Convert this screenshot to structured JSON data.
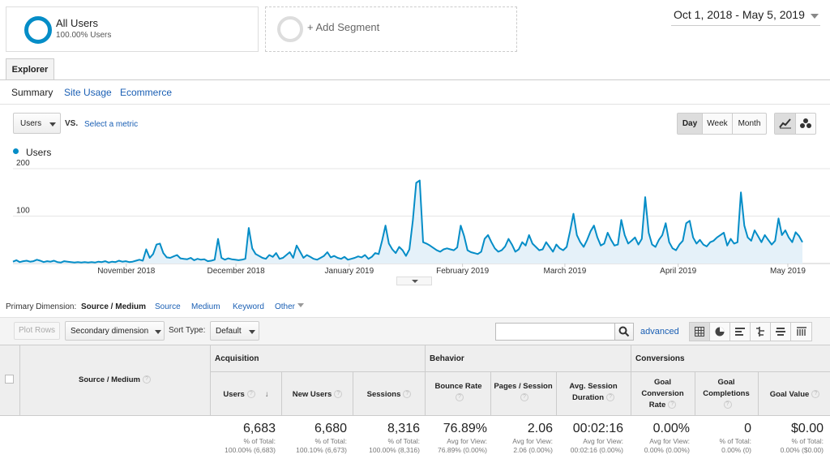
{
  "segment": {
    "title": "All Users",
    "subtitle": "100.00% Users",
    "add_label": "+ Add Segment"
  },
  "date_range": "Oct 1, 2018 - May 5, 2019",
  "tabs": {
    "explorer": "Explorer"
  },
  "subtabs": [
    "Summary",
    "Site Usage",
    "Ecommerce"
  ],
  "metric": {
    "selected": "Users",
    "vs": "VS.",
    "select_metric": "Select a metric"
  },
  "granularity": [
    "Day",
    "Week",
    "Month"
  ],
  "granularity_active": "Day",
  "legend": {
    "label": "Users",
    "color": "#058dc7"
  },
  "chart_data": {
    "type": "area",
    "series": [
      {
        "name": "Users",
        "color": "#058dc7"
      }
    ],
    "y_ticks": [
      "200",
      "100"
    ],
    "ylim": [
      0,
      200
    ],
    "x_labels": [
      "November 2018",
      "December 2018",
      "January 2019",
      "February 2019",
      "March 2019",
      "April 2019",
      "May 2019"
    ],
    "x_range": [
      "2018-10-01",
      "2019-05-05"
    ],
    "values": [
      4,
      7,
      3,
      5,
      6,
      4,
      5,
      8,
      6,
      3,
      5,
      4,
      6,
      3,
      2,
      5,
      4,
      3,
      2,
      3,
      2,
      3,
      2,
      3,
      2,
      4,
      3,
      5,
      2,
      4,
      3,
      6,
      4,
      5,
      3,
      4,
      6,
      8,
      6,
      30,
      12,
      20,
      40,
      42,
      22,
      13,
      12,
      15,
      18,
      11,
      10,
      9,
      12,
      7,
      10,
      8,
      9,
      5,
      6,
      8,
      52,
      12,
      8,
      11,
      9,
      8,
      7,
      8,
      10,
      75,
      32,
      20,
      16,
      12,
      10,
      18,
      14,
      22,
      10,
      12,
      18,
      24,
      12,
      38,
      25,
      12,
      18,
      14,
      10,
      8,
      12,
      16,
      24,
      13,
      16,
      12,
      10,
      14,
      8,
      10,
      12,
      15,
      13,
      18,
      10,
      14,
      22,
      20,
      48,
      80,
      42,
      30,
      22,
      35,
      28,
      16,
      30,
      90,
      170,
      175,
      45,
      42,
      38,
      33,
      28,
      25,
      30,
      32,
      30,
      28,
      34,
      80,
      58,
      28,
      24,
      22,
      20,
      25,
      52,
      60,
      45,
      32,
      25,
      28,
      36,
      52,
      40,
      25,
      30,
      45,
      38,
      60,
      42,
      35,
      28,
      30,
      45,
      35,
      25,
      40,
      32,
      28,
      35,
      68,
      105,
      60,
      45,
      35,
      50,
      68,
      80,
      55,
      38,
      42,
      65,
      50,
      38,
      40,
      92,
      60,
      42,
      48,
      55,
      40,
      52,
      140,
      65,
      40,
      35,
      50,
      60,
      85,
      45,
      32,
      28,
      40,
      48,
      85,
      90,
      55,
      42,
      50,
      40,
      36,
      45,
      48,
      55,
      60,
      65,
      38,
      52,
      42,
      45,
      150,
      80,
      55,
      48,
      70,
      58,
      45,
      60,
      50,
      40,
      48,
      95,
      60,
      70,
      55,
      45,
      66,
      58,
      45
    ]
  },
  "primary_dimension": {
    "label": "Primary Dimension:",
    "items": [
      "Source / Medium",
      "Source",
      "Medium",
      "Keyword",
      "Other"
    ]
  },
  "toolbar": {
    "plot_rows": "Plot Rows",
    "secondary_dimension": "Secondary dimension",
    "sort_type_label": "Sort Type:",
    "sort_type_value": "Default",
    "advanced": "advanced"
  },
  "table": {
    "dimension_header": "Source / Medium",
    "groups": [
      "Acquisition",
      "Behavior",
      "Conversions"
    ],
    "columns": [
      {
        "label": "Users",
        "total": "6,683",
        "sub1": "% of Total:",
        "sub2": "100.00% (6,683)"
      },
      {
        "label": "New Users",
        "total": "6,680",
        "sub1": "% of Total:",
        "sub2": "100.10% (6,673)"
      },
      {
        "label": "Sessions",
        "total": "8,316",
        "sub1": "% of Total:",
        "sub2": "100.00% (8,316)"
      },
      {
        "label": "Bounce Rate",
        "total": "76.89%",
        "sub1": "Avg for View:",
        "sub2": "76.89% (0.00%)"
      },
      {
        "label": "Pages / Session",
        "total": "2.06",
        "sub1": "Avg for View:",
        "sub2": "2.06 (0.00%)"
      },
      {
        "label": "Avg. Session Duration",
        "total": "00:02:16",
        "sub1": "Avg for View:",
        "sub2": "00:02:16 (0.00%)"
      },
      {
        "label": "Goal Conversion Rate",
        "total": "0.00%",
        "sub1": "Avg for View:",
        "sub2": "0.00% (0.00%)"
      },
      {
        "label": "Goal Completions",
        "total": "0",
        "sub1": "% of Total:",
        "sub2": "0.00% (0)"
      },
      {
        "label": "Goal Value",
        "total": "$0.00",
        "sub1": "% of Total:",
        "sub2": "0.00% ($0.00)"
      }
    ]
  }
}
